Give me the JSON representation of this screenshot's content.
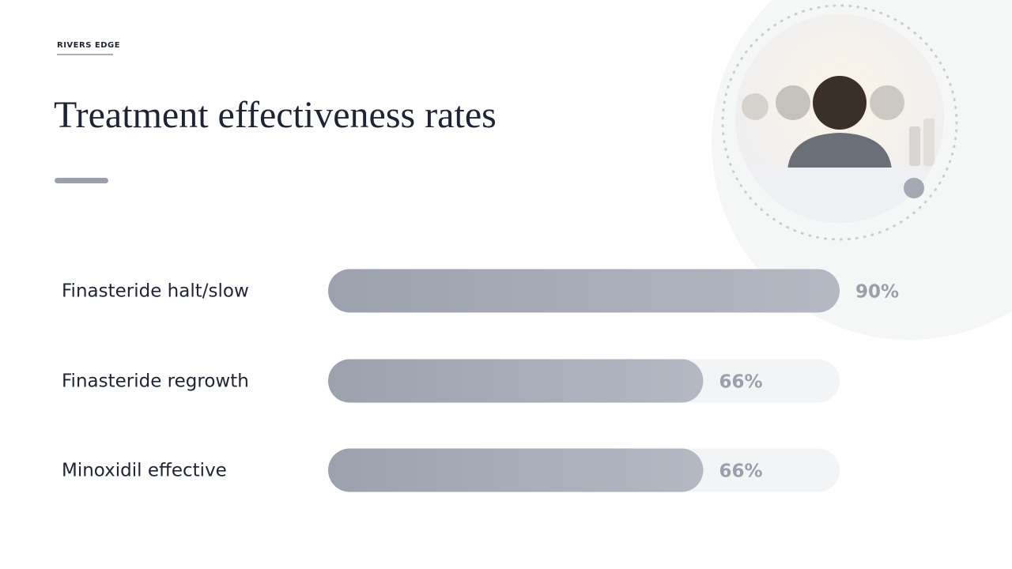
{
  "brand": "RIVERS EDGE",
  "chart_data": {
    "type": "bar",
    "orientation": "horizontal",
    "title": "Treatment effectiveness rates",
    "categories": [
      "Finasteride halt/slow",
      "Finasteride regrowth",
      "Minoxidil effective"
    ],
    "values": [
      90,
      66,
      66
    ],
    "value_labels": [
      "90%",
      "66%",
      "66%"
    ],
    "color": "#9ca1ae"
  }
}
